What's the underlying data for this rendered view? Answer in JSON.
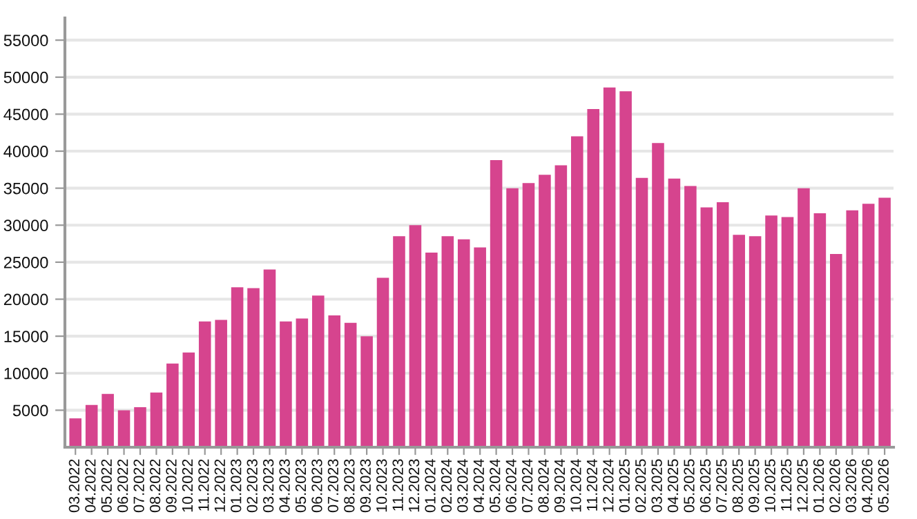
{
  "chart_data": {
    "type": "bar",
    "categories": [
      "03.2022",
      "04.2022",
      "05.2022",
      "06.2022",
      "07.2022",
      "08.2022",
      "09.2022",
      "10.2022",
      "11.2022",
      "12.2022",
      "01.2023",
      "02.2023",
      "03.2023",
      "04.2023",
      "05.2023",
      "06.2023",
      "07.2023",
      "08.2023",
      "09.2023",
      "10.2023",
      "11.2023",
      "12.2023",
      "01.2024",
      "02.2024",
      "03.2024",
      "04.2024",
      "05.2024",
      "06.2024",
      "07.2024",
      "08.2024",
      "09.2024",
      "10.2024",
      "11.2024",
      "12.2024",
      "01.2025",
      "02.2025",
      "03.2025",
      "04.2025",
      "05.2025",
      "06.2025",
      "07.2025",
      "08.2025",
      "09.2025",
      "10.2025",
      "11.2025",
      "12.2025",
      "01.2026",
      "02.2026",
      "03.2026",
      "04.2026",
      "05.2026"
    ],
    "values": [
      3900,
      5700,
      7200,
      5000,
      5400,
      7400,
      11300,
      12800,
      17000,
      17200,
      21600,
      21500,
      24000,
      17000,
      17400,
      20500,
      17800,
      16800,
      15000,
      22900,
      28500,
      30000,
      26300,
      28500,
      28100,
      27000,
      38800,
      35000,
      35700,
      36800,
      38100,
      42000,
      45700,
      48600,
      48100,
      36400,
      41100,
      36300,
      35300,
      32400,
      33100,
      28700,
      28500,
      31300,
      31100,
      35000,
      31600,
      26100,
      32000,
      32900,
      33700
    ],
    "color": "#d6448e",
    "ylim": [
      0,
      58000
    ],
    "yticks": [
      5000,
      10000,
      15000,
      20000,
      25000,
      30000,
      35000,
      40000,
      45000,
      50000,
      55000
    ],
    "grid": "y"
  }
}
